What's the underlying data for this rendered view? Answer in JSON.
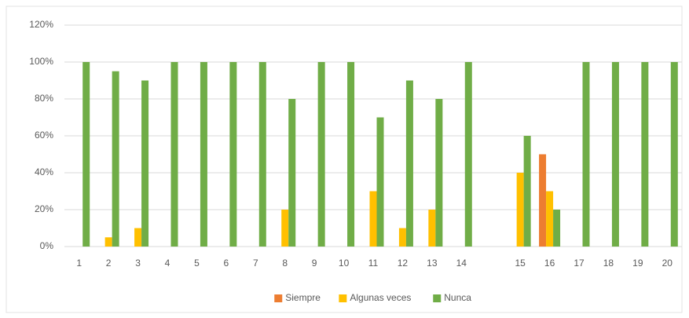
{
  "chart_data": {
    "type": "bar",
    "categories": [
      "1",
      "2",
      "3",
      "4",
      "5",
      "6",
      "7",
      "8",
      "9",
      "10",
      "11",
      "12",
      "13",
      "14",
      null,
      "15",
      "16",
      "17",
      "18",
      "19",
      "20"
    ],
    "series": [
      {
        "name": "Siempre",
        "color": "#ed7d31",
        "values": [
          0,
          0,
          0,
          0,
          0,
          0,
          0,
          0,
          0,
          0,
          0,
          0,
          0,
          0,
          null,
          0,
          50,
          0,
          0,
          0,
          0
        ]
      },
      {
        "name": "Algunas veces",
        "color": "#ffc000",
        "values": [
          0,
          5,
          10,
          0,
          0,
          0,
          0,
          20,
          0,
          0,
          30,
          10,
          20,
          0,
          null,
          40,
          30,
          0,
          0,
          0,
          0
        ]
      },
      {
        "name": "Nunca",
        "color": "#70ad47",
        "values": [
          100,
          95,
          90,
          100,
          100,
          100,
          100,
          80,
          100,
          100,
          70,
          90,
          80,
          100,
          null,
          60,
          20,
          100,
          100,
          100,
          100
        ]
      }
    ],
    "ylim": [
      0,
      120
    ],
    "yticks": [
      {
        "value": 0,
        "label": "0%"
      },
      {
        "value": 20,
        "label": "20%"
      },
      {
        "value": 40,
        "label": "40%"
      },
      {
        "value": 60,
        "label": "60%"
      },
      {
        "value": 80,
        "label": "80%"
      },
      {
        "value": 100,
        "label": "100%"
      },
      {
        "value": 120,
        "label": "120%"
      }
    ],
    "grid": true,
    "legend": "bottom"
  }
}
